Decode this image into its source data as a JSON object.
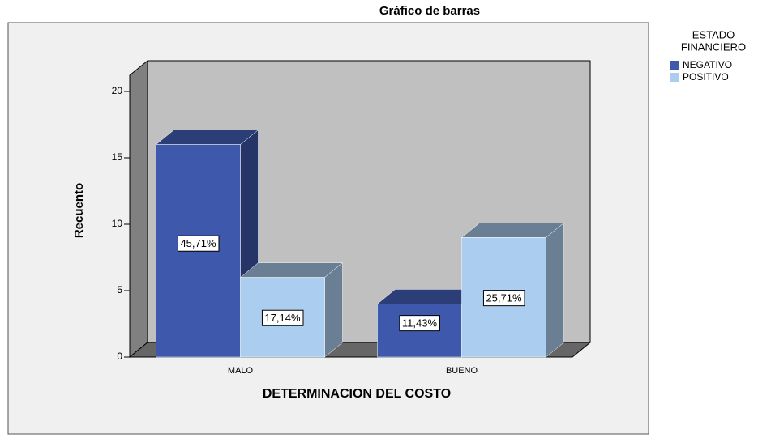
{
  "chart_data": {
    "type": "bar3d",
    "title": "Gráfico de barras",
    "x_label": "DETERMINACION DEL COSTO",
    "y_label": "Recuento",
    "categories": [
      "MALO",
      "BUENO"
    ],
    "legend_title": [
      "ESTADO",
      "FINANCIERO"
    ],
    "series": [
      {
        "name": "NEGATIVO",
        "color": "#3e58ac",
        "values": [
          16,
          4
        ],
        "percents": [
          45.71,
          11.43
        ],
        "percent_labels": [
          "45,71%",
          "11,43%"
        ]
      },
      {
        "name": "POSITIVO",
        "color": "#abcdef",
        "values": [
          6,
          9
        ],
        "percents": [
          17.14,
          25.71
        ],
        "percent_labels": [
          "17,14%",
          "25,71%"
        ]
      }
    ],
    "ylim": [
      0,
      20
    ],
    "yticks": [
      0,
      5,
      10,
      15,
      20
    ],
    "legend": "right"
  }
}
